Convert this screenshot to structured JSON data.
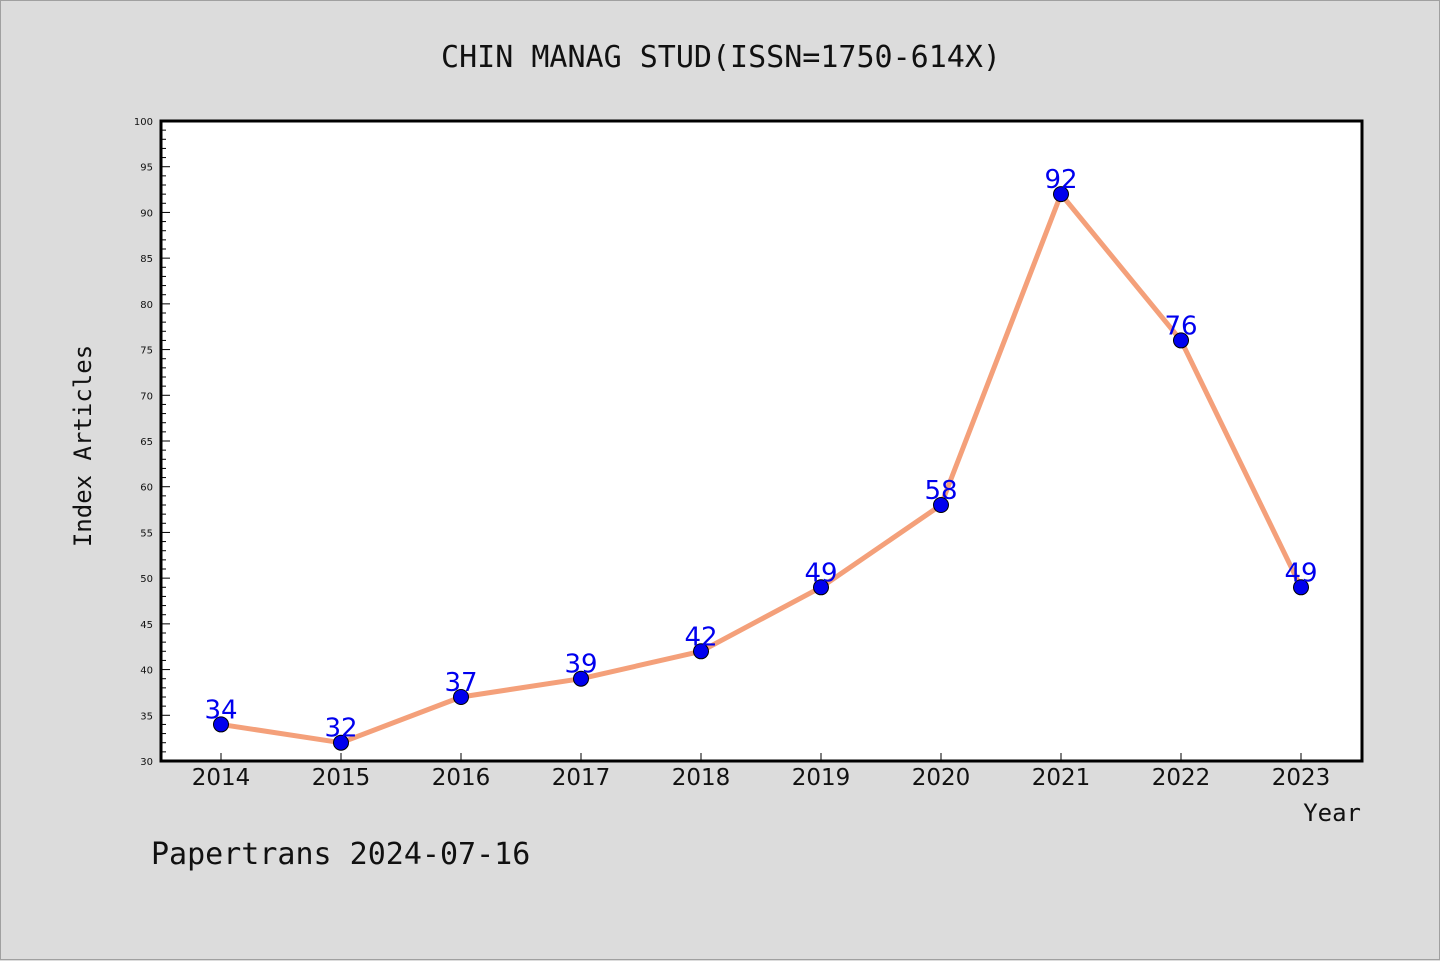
{
  "chart_data": {
    "type": "line",
    "title": "CHIN MANAG STUD(ISSN=1750-614X)",
    "xlabel": "Year",
    "ylabel": "Index Articles",
    "categories": [
      "2014",
      "2015",
      "2016",
      "2017",
      "2018",
      "2019",
      "2020",
      "2021",
      "2022",
      "2023"
    ],
    "series": [
      {
        "values": [
          34,
          32,
          37,
          39,
          42,
          49,
          58,
          92,
          76,
          49
        ]
      }
    ],
    "ylim": [
      30,
      100
    ],
    "ytick_step": 5,
    "grid": false,
    "line_color": "#f4a07a",
    "marker_color": "#0000ee",
    "label_color": "#0000ee"
  },
  "footer": "Papertrans 2024-07-16"
}
